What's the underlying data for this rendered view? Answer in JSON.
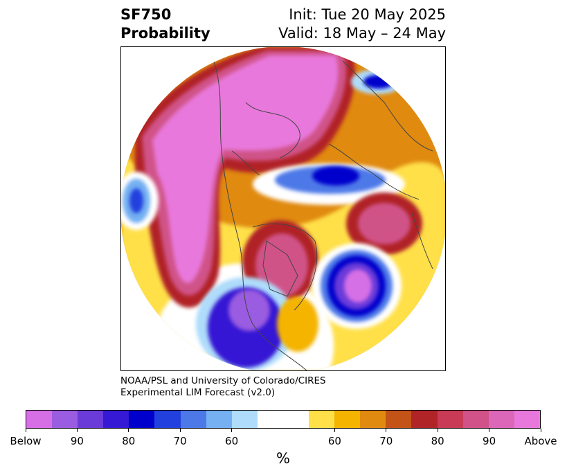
{
  "header": {
    "variable": "SF750",
    "kind": "Probability",
    "init": "Init: Tue 20 May 2025",
    "valid": "Valid: 18 May – 24 May"
  },
  "credit": {
    "line1": "NOAA/PSL and University of Colorado/CIRES",
    "line2": "Experimental LIM Forecast (v2.0)"
  },
  "colorbar": {
    "unit": "%",
    "tick_labels": [
      "Below",
      "90",
      "80",
      "70",
      "60",
      "60",
      "70",
      "80",
      "90",
      "Above"
    ],
    "colors": [
      "#d66fe6",
      "#9a5ce0",
      "#6a3bd9",
      "#3519d4",
      "#0000cc",
      "#2240dd",
      "#4d79e8",
      "#74b0f2",
      "#aedcfa",
      "#ffffff",
      "#ffffff",
      "#ffe048",
      "#f4b400",
      "#e08a10",
      "#c45318",
      "#b02428",
      "#c83a55",
      "#d05288",
      "#dc66b8",
      "#e878dc"
    ]
  },
  "map": {
    "projection": "polar stereographic (North Pole)",
    "colors": {
      "above_strong": "#e878dc",
      "above_high": "#d05288",
      "above_mid": "#b02428",
      "above_low": "#e08a10",
      "above_weak": "#ffe048",
      "below_strong": "#d66fe6",
      "below_high": "#3519d4",
      "below_mid": "#0000cc",
      "below_low": "#4d79e8",
      "below_weak": "#aedcfa",
      "coastline": "#444444"
    }
  }
}
